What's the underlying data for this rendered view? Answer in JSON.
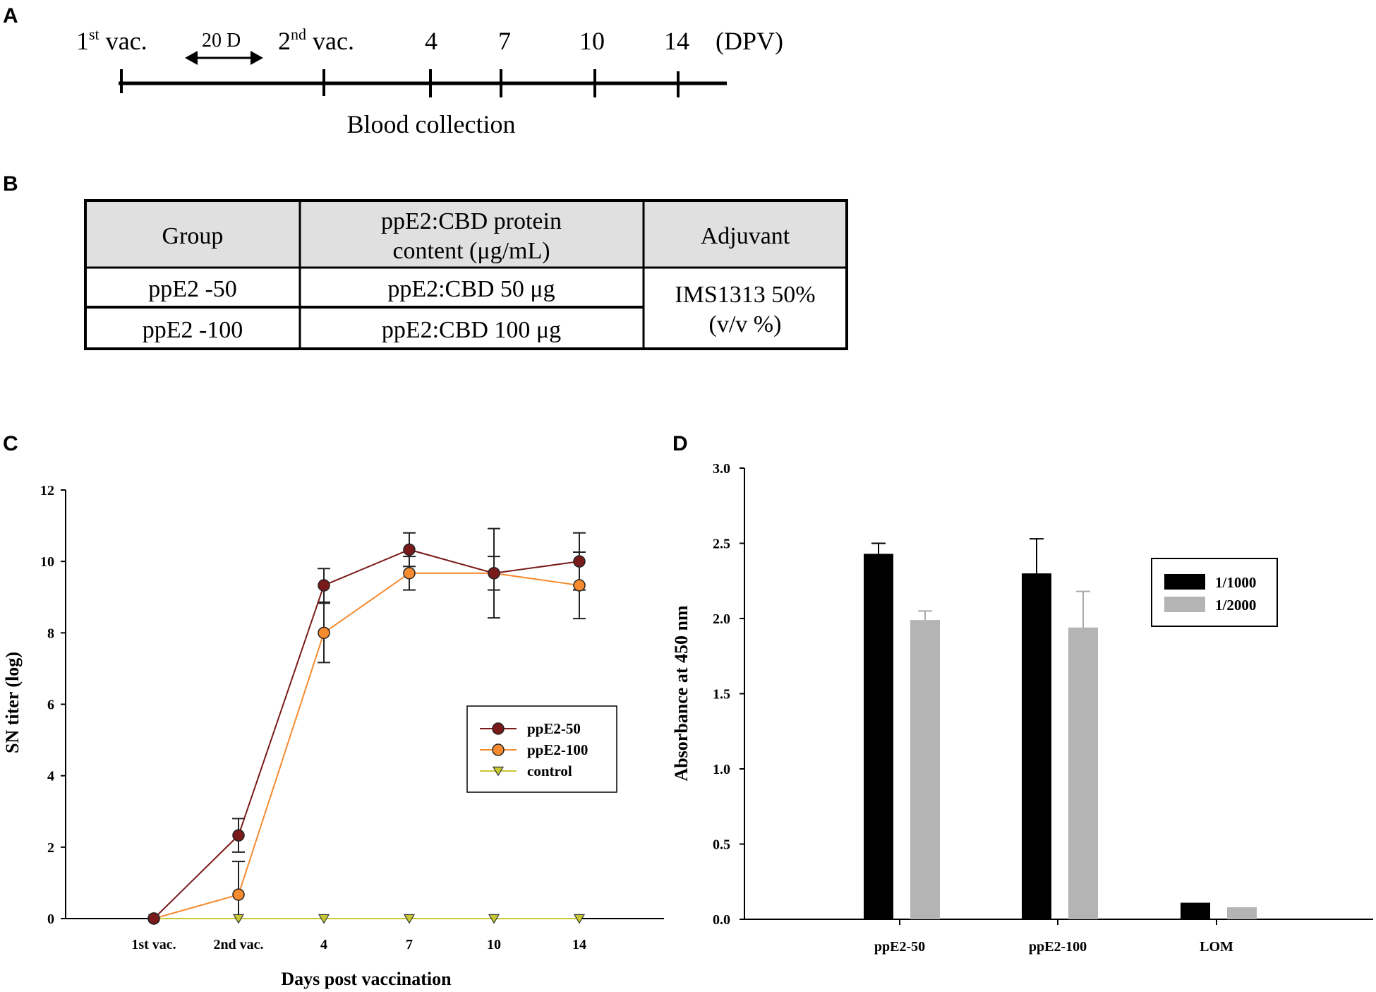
{
  "panels": {
    "a": "A",
    "b": "B",
    "c": "C",
    "d": "D"
  },
  "timeline": {
    "first_vac": "1",
    "first_sup": "st",
    "first_suffix": " vac.",
    "interval": "20 D",
    "second_vac": "2",
    "second_sup": "nd",
    "second_suffix": " vac.",
    "days": [
      "4",
      "7",
      "10",
      "14"
    ],
    "unit": "(DPV)",
    "caption": "Blood collection"
  },
  "table": {
    "headers": [
      "Group",
      "ppE2:CBD protein",
      "content (μg/mL)",
      "Adjuvant"
    ],
    "rows": [
      {
        "group": "ppE2 -50",
        "content": "ppE2:CBD 50  μg"
      },
      {
        "group": "ppE2 -100",
        "content": "ppE2:CBD 100  μg"
      }
    ],
    "adjuvant_line1": "IMS1313 50%",
    "adjuvant_line2": "(v/v %)"
  },
  "chart_data": [
    {
      "type": "line",
      "xlabel": "Days post vaccination",
      "ylabel": "SN titer (log)",
      "categories": [
        "1st vac.",
        "2nd vac.",
        "4",
        "7",
        "10",
        "14"
      ],
      "ylim": [
        0,
        12
      ],
      "yticks": [
        "0",
        "2",
        "4",
        "6",
        "8",
        "10",
        "12"
      ],
      "legend_position": "center-right",
      "series": [
        {
          "name": "ppE2-50",
          "color": "#7a1a1a",
          "marker": "circle",
          "values": [
            0,
            2.33,
            9.33,
            10.33,
            9.67,
            10.0
          ],
          "errors": [
            0,
            0.47,
            0.47,
            0.47,
            0.47,
            0.8
          ]
        },
        {
          "name": "ppE2-100",
          "color": "#f58a2e",
          "marker": "circle",
          "values": [
            0,
            0.67,
            8.0,
            9.67,
            9.67,
            9.33
          ],
          "errors": [
            0,
            0.93,
            0.83,
            0.47,
            1.25,
            0.93
          ]
        },
        {
          "name": "control",
          "color": "#c8c832",
          "marker": "triangle-down",
          "values": [
            0,
            0,
            0,
            0,
            0,
            0
          ],
          "errors": [
            0,
            0,
            0,
            0,
            0,
            0
          ]
        }
      ]
    },
    {
      "type": "bar",
      "xlabel": "",
      "ylabel": "Absorbance at 450 nm",
      "categories": [
        "ppE2-50",
        "ppE2-100",
        "LOM"
      ],
      "ylim": [
        0,
        3.0
      ],
      "yticks": [
        "0.0",
        "0.5",
        "1.0",
        "1.5",
        "2.0",
        "2.5",
        "3.0"
      ],
      "legend_position": "top-right",
      "series": [
        {
          "name": "1/1000",
          "color": "#000000",
          "values": [
            2.43,
            2.3,
            0.11
          ],
          "errors": [
            0.07,
            0.23,
            0
          ]
        },
        {
          "name": "1/2000",
          "color": "#b4b4b4",
          "values": [
            1.99,
            1.94,
            0.08
          ],
          "errors": [
            0.06,
            0.24,
            0
          ]
        }
      ]
    }
  ]
}
